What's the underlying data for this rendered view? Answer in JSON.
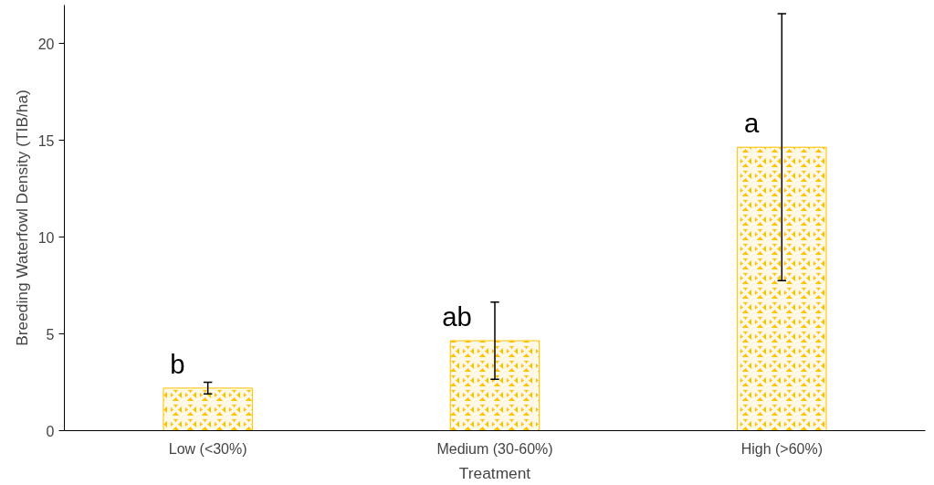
{
  "chart_data": {
    "type": "bar",
    "xlabel": "Treatment",
    "ylabel": "Breeding Waterfowl Density (TIB/ha)",
    "categories": [
      "Low (<30%)",
      "Medium (30-60%)",
      "High (>60%)"
    ],
    "values": [
      2.2,
      4.65,
      14.65
    ],
    "color": "#ffc000",
    "errors": [
      0.3,
      2.0,
      6.9
    ],
    "ylim": [
      0,
      22
    ],
    "yticks": [
      0,
      5,
      10,
      15,
      20
    ],
    "grid": false,
    "annotations": [
      "b",
      "ab",
      "a"
    ]
  }
}
